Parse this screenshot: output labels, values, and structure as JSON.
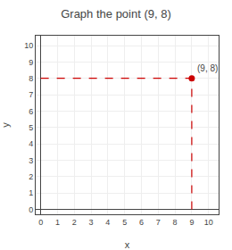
{
  "chart_data": {
    "type": "scatter",
    "title": "Graph the point (9, 8)",
    "x": [
      9
    ],
    "values": [
      8
    ],
    "color": "#cc0000",
    "marker": "circle",
    "line_style": "dashed",
    "annotations": [
      {
        "text": "(9, 8)",
        "x": 9,
        "y": 8
      }
    ],
    "xlabel": "x",
    "ylabel": "y",
    "xlim": [
      -0.3,
      10.6
    ],
    "ylim": [
      -0.3,
      10.6
    ],
    "xticks": [
      0,
      1,
      2,
      3,
      4,
      5,
      6,
      7,
      8,
      9,
      10
    ],
    "yticks": [
      0,
      1,
      2,
      3,
      4,
      5,
      6,
      7,
      8,
      9,
      10
    ],
    "grid": true
  }
}
